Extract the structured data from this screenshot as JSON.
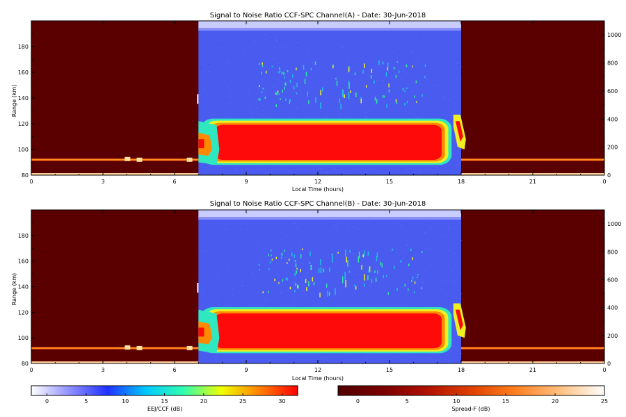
{
  "chart_data": {
    "type": "heatmap",
    "date": "30-Jun-2018",
    "panels": [
      {
        "title": "Signal to Noise Ratio CCF-SPC Channel(A) - Date: 30-Jun-2018",
        "xlabel": "Local Time (hours)",
        "ylabel": "Range (km)",
        "xlim": [
          0,
          24
        ],
        "ylim_left": [
          80,
          200
        ],
        "ylim_right": [
          0,
          1100
        ],
        "x_ticks": [
          "0",
          "3",
          "6",
          "9",
          "12",
          "15",
          "18",
          "21",
          "0"
        ],
        "y_ticks_left": [
          "80",
          "100",
          "120",
          "140",
          "160",
          "180"
        ],
        "y_ticks_right": [
          "0",
          "200",
          "400",
          "600",
          "800",
          "1000"
        ],
        "day_window_hours": [
          7,
          18
        ],
        "eej_layer_km": [
          88,
          124
        ],
        "eej_peak_hours": [
          8,
          17.5
        ],
        "eej_peak_snr_db": 30,
        "upper_echoes_km": [
          135,
          170
        ],
        "upper_echoes_hours": [
          11,
          15
        ],
        "spreadf_band_km": 92
      },
      {
        "title": "Signal to Noise Ratio CCF-SPC Channel(B) - Date: 30-Jun-2018",
        "xlabel": "Local Time (hours)",
        "ylabel": "Range (km)",
        "xlim": [
          0,
          24
        ],
        "ylim_left": [
          80,
          200
        ],
        "ylim_right": [
          0,
          1100
        ],
        "x_ticks": [
          "0",
          "3",
          "6",
          "9",
          "12",
          "15",
          "18",
          "21",
          "0"
        ],
        "y_ticks_left": [
          "80",
          "100",
          "120",
          "140",
          "160",
          "180"
        ],
        "y_ticks_right": [
          "0",
          "200",
          "400",
          "600",
          "800",
          "1000"
        ],
        "day_window_hours": [
          7,
          18
        ],
        "eej_layer_km": [
          88,
          124
        ],
        "eej_peak_hours": [
          8,
          17.5
        ],
        "eej_peak_snr_db": 30,
        "upper_echoes_km": [
          135,
          170
        ],
        "upper_echoes_hours": [
          11,
          15
        ],
        "spreadf_band_km": 92
      }
    ],
    "colorbars": [
      {
        "label": "EEJ/CCF (dB)",
        "range": [
          -2,
          32
        ],
        "ticks": [
          "0",
          "5",
          "10",
          "15",
          "20",
          "25",
          "30"
        ],
        "colors": [
          "#ffffff",
          "#9090ff",
          "#2030ff",
          "#00c8ff",
          "#30ffb0",
          "#f0ff00",
          "#ff8000",
          "#ff0000"
        ]
      },
      {
        "label": "Spread-F (dB)",
        "range": [
          -2,
          25
        ],
        "ticks": [
          "0",
          "5",
          "10",
          "15",
          "20",
          "25"
        ],
        "colors": [
          "#500000",
          "#7a0000",
          "#b01000",
          "#e04000",
          "#ff8020",
          "#ffc080",
          "#ffffff"
        ]
      }
    ],
    "colors": {
      "night_background": "#5a0000",
      "day_background": "#4a5cf0",
      "noise_speckle": "#5c6cf4",
      "eej_core": "#ff0a0a",
      "eej_edge_1": "#ff8a00",
      "eej_edge_2": "#f0f020",
      "eej_edge_3": "#30e8c0",
      "upper_echo": "#20c0e0",
      "spreadf_band": "#ff9020"
    }
  }
}
